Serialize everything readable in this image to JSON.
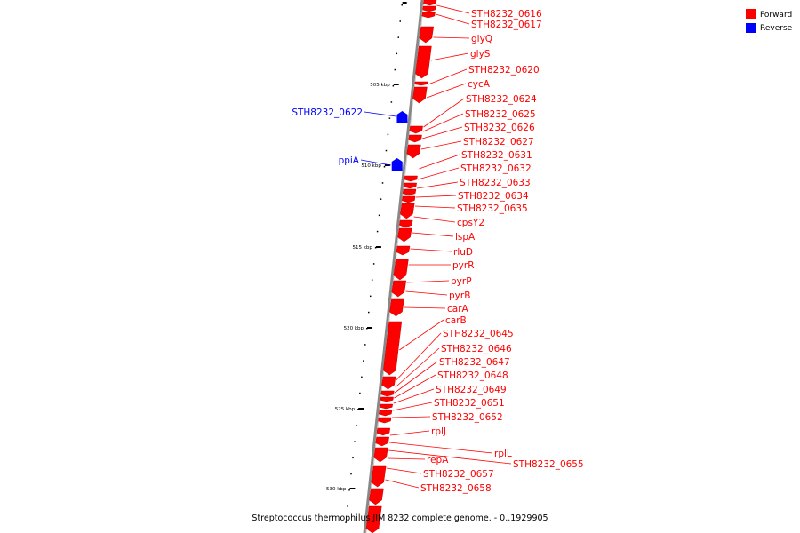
{
  "legend": {
    "forward": {
      "label": "Forward",
      "color": "#ff0000"
    },
    "reverse": {
      "label": "Reverse",
      "color": "#0000ff"
    }
  },
  "caption": "Streptococcus thermophilus JIM 8232 complete genome. - 0..1929905",
  "colors": {
    "forward": "#ff0000",
    "reverse": "#0000ff",
    "backbone": "#888888"
  },
  "ticks": [
    "505 kbp",
    "510 kbp",
    "515 kbp",
    "520 kbp",
    "525 kbp",
    "530 kbp"
  ],
  "forward_genes": [
    "STH8232_0616",
    "STH8232_0617",
    "glyQ",
    "glyS",
    "STH8232_0620",
    "cycA",
    "STH8232_0624",
    "STH8232_0625",
    "STH8232_0626",
    "STH8232_0627",
    "STH8232_0631",
    "STH8232_0632",
    "STH8232_0633",
    "STH8232_0634",
    "STH8232_0635",
    "cpsY2",
    "lspA",
    "rluD",
    "pyrR",
    "pyrP",
    "pyrB",
    "carA",
    "carB",
    "STH8232_0645",
    "STH8232_0646",
    "STH8232_0647",
    "STH8232_0648",
    "STH8232_0649",
    "STH8232_0651",
    "STH8232_0652",
    "rplJ",
    "rplL",
    "STH8232_0655",
    "repA",
    "STH8232_0657",
    "STH8232_0658"
  ],
  "reverse_genes": [
    "STH8232_0622",
    "ppiA"
  ]
}
